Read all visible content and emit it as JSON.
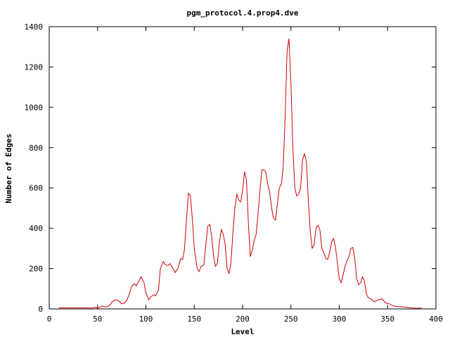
{
  "chart_data": {
    "type": "line",
    "title": "pgm_protocol.4.prop4.dve",
    "xlabel": "Level",
    "ylabel": "Number of Edges",
    "xlim": [
      0,
      400
    ],
    "ylim": [
      0,
      1400
    ],
    "xticks": [
      0,
      50,
      100,
      150,
      200,
      250,
      300,
      350,
      400
    ],
    "yticks": [
      0,
      200,
      400,
      600,
      800,
      1000,
      1200,
      1400
    ],
    "xtick_labels": [
      "0",
      "50",
      "100",
      "150",
      "200",
      "250",
      "300",
      "350",
      "400"
    ],
    "ytick_labels": [
      "0",
      "200",
      "400",
      "600",
      "800",
      "1000",
      "1200",
      "1400"
    ],
    "grid": false,
    "legend": "none",
    "series": [
      {
        "color": "#cc0000",
        "x": [
          10,
          20,
          30,
          40,
          45,
          48,
          50,
          55,
          58,
          60,
          63,
          65,
          68,
          72,
          75,
          78,
          80,
          83,
          85,
          88,
          90,
          93,
          95,
          98,
          100,
          103,
          105,
          108,
          110,
          113,
          115,
          118,
          120,
          123,
          125,
          128,
          130,
          133,
          136,
          138,
          140,
          142,
          144,
          146,
          148,
          150,
          153,
          155,
          157,
          160,
          162,
          164,
          166,
          168,
          170,
          172,
          174,
          176,
          178,
          180,
          182,
          184,
          186,
          188,
          190,
          192,
          194,
          196,
          198,
          200,
          202,
          204,
          206,
          208,
          210,
          212,
          214,
          216,
          218,
          220,
          222,
          224,
          226,
          228,
          230,
          232,
          234,
          236,
          238,
          240,
          242,
          244,
          246,
          248,
          250,
          252,
          254,
          256,
          258,
          260,
          262,
          264,
          266,
          268,
          270,
          272,
          274,
          276,
          278,
          280,
          282,
          284,
          286,
          288,
          290,
          292,
          294,
          296,
          298,
          300,
          302,
          304,
          306,
          308,
          310,
          312,
          314,
          316,
          318,
          320,
          322,
          324,
          326,
          328,
          330,
          333,
          336,
          340,
          344,
          348,
          352,
          356,
          360,
          365,
          370,
          375,
          380,
          385
        ],
        "y": [
          5,
          5,
          5,
          5,
          5,
          8,
          3,
          15,
          10,
          12,
          20,
          35,
          45,
          40,
          25,
          30,
          40,
          75,
          110,
          125,
          115,
          140,
          160,
          130,
          80,
          45,
          60,
          70,
          65,
          95,
          200,
          235,
          220,
          215,
          225,
          200,
          180,
          200,
          250,
          245,
          300,
          450,
          575,
          560,
          450,
          300,
          200,
          185,
          210,
          220,
          320,
          410,
          420,
          360,
          260,
          210,
          230,
          330,
          395,
          370,
          320,
          200,
          175,
          230,
          380,
          500,
          570,
          540,
          530,
          590,
          680,
          640,
          420,
          260,
          290,
          340,
          370,
          470,
          590,
          690,
          690,
          680,
          620,
          580,
          500,
          450,
          440,
          520,
          600,
          620,
          700,
          950,
          1280,
          1340,
          1120,
          800,
          600,
          560,
          570,
          600,
          740,
          770,
          730,
          540,
          380,
          300,
          320,
          400,
          415,
          390,
          300,
          280,
          250,
          245,
          280,
          330,
          350,
          310,
          230,
          150,
          130,
          170,
          210,
          240,
          260,
          300,
          305,
          250,
          150,
          120,
          130,
          160,
          140,
          75,
          55,
          50,
          35,
          45,
          50,
          30,
          25,
          15,
          12,
          10,
          8,
          5,
          3,
          5
        ]
      }
    ]
  }
}
